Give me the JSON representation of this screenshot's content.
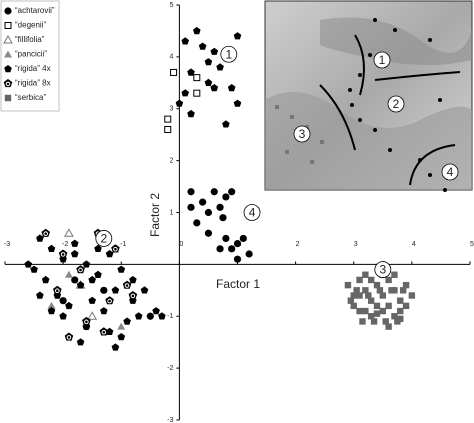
{
  "chart_data": {
    "type": "scatter",
    "xlabel": "Factor 1",
    "ylabel": "Factor 2",
    "xlim": [
      -3,
      5
    ],
    "ylim": [
      -3,
      5
    ],
    "xticks": [
      -3,
      -2,
      -1,
      0,
      1,
      2,
      3,
      4,
      5
    ],
    "yticks": [
      -3,
      -2,
      -1,
      1,
      2,
      3,
      4,
      5
    ],
    "legend": "upper left",
    "series": [
      {
        "name": "“achtarovii”",
        "marker": "circle",
        "color": "#000000",
        "x": [
          0.2,
          0.4,
          0.6,
          0.8,
          0.9,
          0.2,
          0.5,
          0.7,
          0.75,
          0.5,
          0.8,
          1.0,
          0.9,
          1.1,
          0.3,
          1.2,
          1.0,
          0.7,
          -1.8,
          -2.0,
          -1.3,
          -1.6,
          -0.5
        ],
        "y": [
          1.4,
          1.2,
          1.4,
          1.3,
          1.4,
          1.1,
          1.0,
          1.1,
          0.9,
          0.6,
          0.5,
          0.4,
          0.3,
          0.5,
          0.8,
          0.2,
          0.1,
          0.3,
          -0.3,
          -0.7,
          -0.5,
          -1.2,
          -1.0
        ]
      },
      {
        "name": "“degenii”",
        "marker": "square-open",
        "color": "#000000",
        "x": [
          -0.2,
          -0.2,
          0.3,
          0.3,
          -0.1
        ],
        "y": [
          2.8,
          2.6,
          3.3,
          3.6,
          3.7
        ]
      },
      {
        "name": "“fillifolia”",
        "marker": "triangle-open",
        "color": "#777777",
        "x": [
          -1.9,
          -1.5,
          -1.7
        ],
        "y": [
          0.6,
          -1.0,
          -0.4
        ]
      },
      {
        "name": "“pancicii”",
        "marker": "triangle",
        "color": "#888888",
        "x": [
          -2.2,
          -1.0,
          -1.9
        ],
        "y": [
          -0.8,
          -1.2,
          -0.2
        ]
      },
      {
        "name": "“rigida” 4x",
        "marker": "pentagon",
        "color": "#000000",
        "x": [
          -2.4,
          -2.2,
          -2.0,
          -1.8,
          -1.6,
          -1.4,
          -1.2,
          -1.0,
          -0.8,
          -0.6,
          -0.4,
          -2.3,
          -2.1,
          -1.9,
          -1.7,
          -1.5,
          -1.3,
          -1.1,
          -0.9,
          -0.7,
          -2.5,
          -2.0,
          -1.6,
          -1.2,
          -0.8,
          -1.8,
          -1.4,
          -1.0,
          -2.2,
          -1.5,
          -2.4,
          -1.1,
          -0.3,
          -2.6,
          -1.7,
          0.1,
          0.3,
          0.4,
          0.5,
          0.6,
          0.5,
          0.7,
          0.6,
          0.1,
          0.0,
          0.2,
          0.2,
          0.9,
          1.0,
          0.8,
          1.0
        ],
        "y": [
          0.5,
          0.3,
          0.1,
          0.4,
          0.0,
          -0.2,
          0.2,
          -0.1,
          -0.3,
          -0.5,
          -0.9,
          -0.3,
          -0.6,
          -0.8,
          -0.4,
          -0.7,
          -0.9,
          -0.5,
          -1.1,
          -1.0,
          -0.1,
          -1.0,
          -1.2,
          -1.3,
          -0.7,
          0.2,
          0.3,
          -1.4,
          -0.9,
          -0.3,
          -0.6,
          -1.6,
          -1.0,
          0.0,
          -1.5,
          4.3,
          4.5,
          4.2,
          3.9,
          4.1,
          3.5,
          3.8,
          3.4,
          3.3,
          3.1,
          2.9,
          3.7,
          3.4,
          4.4,
          2.7,
          3.1
        ]
      },
      {
        "name": "“rigida” 8x",
        "marker": "pentagon-ring",
        "color": "#000000",
        "x": [
          -2.3,
          -2.0,
          -1.7,
          -1.4,
          -1.1,
          -0.8,
          -2.1,
          -1.6,
          -1.2,
          -1.9,
          -1.3,
          -0.9
        ],
        "y": [
          0.6,
          0.2,
          -0.1,
          0.6,
          0.3,
          -0.6,
          -0.5,
          -1.1,
          -0.7,
          -1.4,
          -1.3,
          -0.4
        ]
      },
      {
        "name": "“serbica”",
        "marker": "square",
        "color": "#666666",
        "x": [
          2.9,
          3.0,
          3.1,
          3.2,
          3.3,
          3.4,
          3.5,
          3.6,
          3.7,
          3.8,
          3.9,
          4.0,
          3.0,
          3.1,
          3.2,
          3.3,
          3.4,
          3.5,
          3.6,
          3.7,
          3.8,
          3.9,
          3.05,
          3.25,
          3.45,
          3.65,
          3.85,
          3.15,
          3.35,
          3.55,
          3.75,
          2.95,
          3.5,
          3.3,
          3.7,
          3.2,
          3.6,
          3.4,
          3.8,
          3.1
        ],
        "y": [
          -0.4,
          -0.6,
          -0.3,
          -0.5,
          -0.7,
          -0.4,
          -0.6,
          -0.3,
          -0.5,
          -0.7,
          -0.4,
          -0.6,
          -0.8,
          -0.9,
          -0.2,
          -1.0,
          -0.8,
          -0.9,
          -0.8,
          -1.0,
          -0.9,
          -0.8,
          -0.5,
          -0.6,
          -0.5,
          -0.5,
          -0.5,
          -1.1,
          -1.1,
          -1.1,
          -1.1,
          -0.7,
          -0.2,
          -0.3,
          -0.2,
          -0.9,
          -1.2,
          -0.95,
          -1.05,
          -0.6
        ]
      }
    ],
    "annotations": [
      {
        "text": "1",
        "x": 0.85,
        "y": 4.05
      },
      {
        "text": "2",
        "x": -1.3,
        "y": 0.5
      },
      {
        "text": "3",
        "x": 3.5,
        "y": -0.1
      },
      {
        "text": "4",
        "x": 1.25,
        "y": 1.0
      }
    ],
    "inset_labels": [
      "1",
      "2",
      "3",
      "4"
    ]
  }
}
